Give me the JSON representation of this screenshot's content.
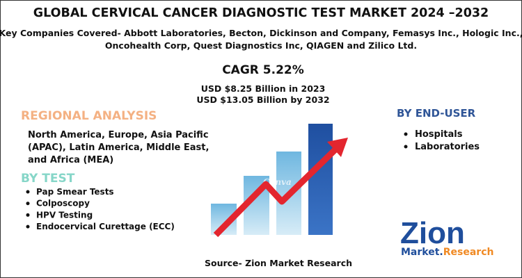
{
  "header": {
    "title": "GLOBAL CERVICAL CANCER DIAGNOSTIC TEST MARKET 2024 –2032",
    "companies": [
      "Key Companies Covered- Abbott Laboratories, Becton, Dickinson and Company, Femasys Inc., Hologic Inc.,",
      "Oncohealth Corp, Quest Diagnostics Inc, QIAGEN and Zilico Ltd."
    ]
  },
  "highlights": {
    "cagr": "CAGR 5.22%",
    "values": [
      "USD $8.25 Billion in 2023",
      "USD $13.05 Billion by 2032"
    ]
  },
  "regional": {
    "heading": "REGIONAL ANALYSIS",
    "lines": [
      "North America, Europe, Asia Pacific",
      "(APAC), Latin America, Middle East,",
      "and Africa (MEA)"
    ]
  },
  "by_test": {
    "heading": "BY TEST",
    "items": [
      "Pap Smear Tests",
      "Colposcopy",
      "HPV Testing",
      "Endocervical Curettage (ECC)"
    ]
  },
  "by_end_user": {
    "heading": "BY END-USER",
    "items": [
      "Hospitals",
      "Laboratories"
    ]
  },
  "watermark": "Canva",
  "logo": {
    "name": "Zion",
    "tagline": [
      "Market.",
      "Research"
    ]
  },
  "source": "Source- Zion Market Research"
}
